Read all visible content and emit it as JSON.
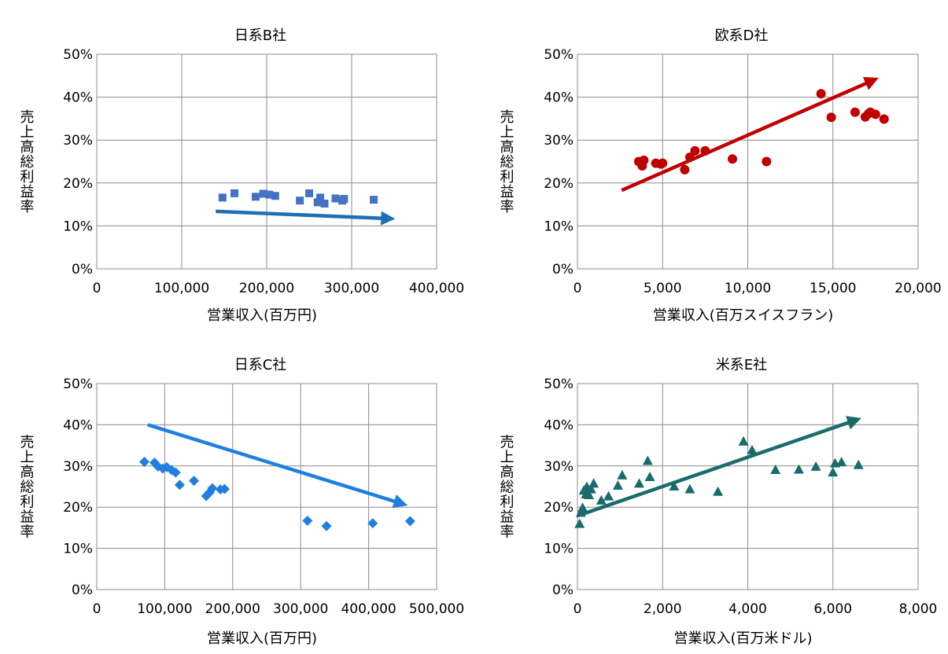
{
  "chart_data": [
    {
      "type": "scatter",
      "title": "日系B社",
      "xlabel": "営業収入(百万円)",
      "ylabel": "売上高総利益率",
      "xlim": [
        0,
        400000
      ],
      "ylim": [
        0,
        50
      ],
      "x_ticks": [
        "0",
        "100,000",
        "200,000",
        "300,000",
        "400,000"
      ],
      "y_ticks": [
        "0%",
        "10%",
        "20%",
        "30%",
        "40%",
        "50%"
      ],
      "grid": true,
      "marker": "square",
      "color": "#4472c4",
      "trend_color": "#1f6fb5",
      "points": [
        [
          148000,
          16.6
        ],
        [
          162000,
          17.6
        ],
        [
          187000,
          16.8
        ],
        [
          196000,
          17.5
        ],
        [
          203000,
          17.3
        ],
        [
          210000,
          17.0
        ],
        [
          239000,
          15.9
        ],
        [
          250000,
          17.6
        ],
        [
          260000,
          15.5
        ],
        [
          263000,
          16.6
        ],
        [
          268000,
          15.2
        ],
        [
          281000,
          16.4
        ],
        [
          289000,
          15.9
        ],
        [
          291000,
          16.3
        ],
        [
          326000,
          16.1
        ]
      ],
      "trend": [
        [
          140000,
          13.4
        ],
        [
          345000,
          11.7
        ]
      ]
    },
    {
      "type": "scatter",
      "title": "欧系D社",
      "xlabel": "営業収入(百万スイスフラン)",
      "ylabel": "売上高総利益率",
      "xlim": [
        0,
        20000
      ],
      "ylim": [
        0,
        50
      ],
      "x_ticks": [
        "0",
        "5,000",
        "10,000",
        "15,000",
        "20,000"
      ],
      "y_ticks": [
        "0%",
        "10%",
        "20%",
        "30%",
        "40%",
        "50%"
      ],
      "grid": true,
      "marker": "circle",
      "color": "#c00000",
      "trend_color": "#c00000",
      "points": [
        [
          3600,
          25.0
        ],
        [
          3800,
          24.0
        ],
        [
          3900,
          25.3
        ],
        [
          4600,
          24.6
        ],
        [
          4900,
          24.4
        ],
        [
          5000,
          24.6
        ],
        [
          6300,
          23.1
        ],
        [
          6600,
          26.0
        ],
        [
          6900,
          27.5
        ],
        [
          7500,
          27.5
        ],
        [
          9100,
          25.6
        ],
        [
          11100,
          25.0
        ],
        [
          14300,
          40.8
        ],
        [
          14900,
          35.3
        ],
        [
          16300,
          36.5
        ],
        [
          16900,
          35.4
        ],
        [
          17100,
          36.2
        ],
        [
          17200,
          36.5
        ],
        [
          17500,
          36.0
        ],
        [
          18000,
          34.9
        ]
      ],
      "trend": [
        [
          2600,
          18.3
        ],
        [
          17400,
          44.0
        ]
      ]
    },
    {
      "type": "scatter",
      "title": "日系C社",
      "xlabel": "営業収入(百万円)",
      "ylabel": "売上高総利益率",
      "xlim": [
        0,
        500000
      ],
      "ylim": [
        0,
        50
      ],
      "x_ticks": [
        "0",
        "100,000",
        "200,000",
        "300,000",
        "400,000",
        "500,000"
      ],
      "y_ticks": [
        "0%",
        "10%",
        "20%",
        "30%",
        "40%",
        "50%"
      ],
      "grid": true,
      "marker": "diamond",
      "color": "#1f7fe0",
      "trend_color": "#1f7fe0",
      "points": [
        [
          70000,
          31.0
        ],
        [
          85000,
          30.8
        ],
        [
          90000,
          29.9
        ],
        [
          97000,
          29.4
        ],
        [
          103000,
          29.7
        ],
        [
          110000,
          29.0
        ],
        [
          116000,
          28.4
        ],
        [
          122000,
          25.4
        ],
        [
          143000,
          26.4
        ],
        [
          161000,
          22.7
        ],
        [
          166000,
          23.6
        ],
        [
          170000,
          24.6
        ],
        [
          182000,
          24.3
        ],
        [
          188000,
          24.4
        ],
        [
          310000,
          16.7
        ],
        [
          338000,
          15.4
        ],
        [
          406000,
          16.1
        ],
        [
          461000,
          16.6
        ]
      ],
      "trend": [
        [
          75000,
          40.0
        ],
        [
          450000,
          20.8
        ]
      ]
    },
    {
      "type": "scatter",
      "title": "米系E社",
      "xlabel": "営業収入(百万米ドル)",
      "ylabel": "売上高総利益率",
      "xlim": [
        0,
        8000
      ],
      "ylim": [
        0,
        50
      ],
      "x_ticks": [
        "0",
        "2,000",
        "4,000",
        "6,000",
        "8,000"
      ],
      "y_ticks": [
        "0%",
        "10%",
        "20%",
        "30%",
        "40%",
        "50%"
      ],
      "grid": true,
      "marker": "triangle",
      "color": "#1a6b6b",
      "trend_color": "#1a6b6b",
      "points": [
        [
          50,
          15.9
        ],
        [
          80,
          18.6
        ],
        [
          120,
          19.8
        ],
        [
          150,
          24.0
        ],
        [
          200,
          23.1
        ],
        [
          220,
          24.9
        ],
        [
          270,
          22.9
        ],
        [
          320,
          24.3
        ],
        [
          380,
          25.7
        ],
        [
          560,
          21.6
        ],
        [
          730,
          22.6
        ],
        [
          950,
          25.2
        ],
        [
          1050,
          27.7
        ],
        [
          1450,
          25.7
        ],
        [
          1650,
          31.2
        ],
        [
          1700,
          27.3
        ],
        [
          2270,
          25.0
        ],
        [
          2640,
          24.3
        ],
        [
          3300,
          23.7
        ],
        [
          3900,
          35.9
        ],
        [
          4100,
          33.8
        ],
        [
          4650,
          29.0
        ],
        [
          5200,
          29.1
        ],
        [
          5600,
          29.8
        ],
        [
          6000,
          28.4
        ],
        [
          6050,
          30.6
        ],
        [
          6200,
          30.9
        ],
        [
          6600,
          30.2
        ]
      ],
      "trend": [
        [
          0,
          17.9
        ],
        [
          6550,
          41.2
        ]
      ]
    }
  ]
}
